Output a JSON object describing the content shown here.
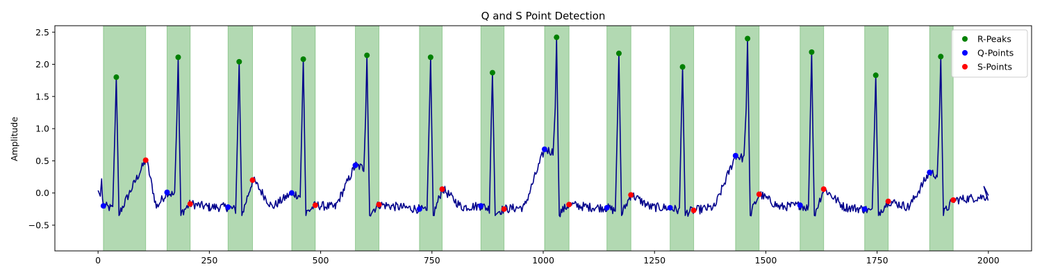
{
  "chart_data": {
    "type": "line",
    "title": "Q and S Point Detection",
    "xlabel": "",
    "ylabel": "Amplitude",
    "xlim": [
      -97,
      2097
    ],
    "ylim": [
      -0.9,
      2.6
    ],
    "xticks": [
      0,
      250,
      500,
      750,
      1000,
      1250,
      1500,
      1750,
      2000
    ],
    "yticks": [
      -0.5,
      0.0,
      0.5,
      1.0,
      1.5,
      2.0,
      2.5
    ],
    "xtick_labels": [
      "0",
      "250",
      "500",
      "750",
      "1000",
      "1250",
      "1500",
      "1750",
      "2000"
    ],
    "ytick_labels": [
      "−0.5",
      "0.0",
      "0.5",
      "1.0",
      "1.5",
      "2.0",
      "2.5"
    ],
    "grid": false,
    "legend_position": "top-right",
    "colors": {
      "signal": "#00008b",
      "r_peaks": "#008000",
      "q_points": "#0000ff",
      "s_points": "#ff0000",
      "region": "#008000"
    },
    "regions": [
      [
        12,
        107
      ],
      [
        155,
        207
      ],
      [
        292,
        347
      ],
      [
        435,
        488
      ],
      [
        578,
        631
      ],
      [
        722,
        773
      ],
      [
        860,
        912
      ],
      [
        1003,
        1058
      ],
      [
        1143,
        1197
      ],
      [
        1285,
        1338
      ],
      [
        1432,
        1485
      ],
      [
        1577,
        1630
      ],
      [
        1722,
        1775
      ],
      [
        1868,
        1921
      ]
    ],
    "series": [
      {
        "name": "R-Peaks",
        "marker": "circle",
        "points": [
          [
            41,
            1.8
          ],
          [
            180,
            2.11
          ],
          [
            317,
            2.04
          ],
          [
            461,
            2.08
          ],
          [
            604,
            2.14
          ],
          [
            747,
            2.11
          ],
          [
            886,
            1.87
          ],
          [
            1030,
            2.42
          ],
          [
            1170,
            2.17
          ],
          [
            1313,
            1.96
          ],
          [
            1459,
            2.4
          ],
          [
            1603,
            2.19
          ],
          [
            1747,
            1.83
          ],
          [
            1893,
            2.12
          ]
        ]
      },
      {
        "name": "Q-Points",
        "marker": "circle",
        "points": [
          [
            12,
            -0.2
          ],
          [
            155,
            0.01
          ],
          [
            292,
            -0.22
          ],
          [
            435,
            0.0
          ],
          [
            578,
            0.43
          ],
          [
            722,
            -0.25
          ],
          [
            860,
            -0.2
          ],
          [
            1003,
            0.68
          ],
          [
            1143,
            -0.23
          ],
          [
            1285,
            -0.23
          ],
          [
            1432,
            0.58
          ],
          [
            1577,
            -0.19
          ],
          [
            1722,
            -0.25
          ],
          [
            1868,
            0.32
          ]
        ]
      },
      {
        "name": "S-Points",
        "marker": "circle",
        "points": [
          [
            107,
            0.51
          ],
          [
            207,
            -0.17
          ],
          [
            347,
            0.2
          ],
          [
            488,
            -0.19
          ],
          [
            631,
            -0.18
          ],
          [
            773,
            0.06
          ],
          [
            912,
            -0.25
          ],
          [
            1058,
            -0.18
          ],
          [
            1197,
            -0.03
          ],
          [
            1338,
            -0.27
          ],
          [
            1485,
            -0.02
          ],
          [
            1630,
            0.06
          ],
          [
            1775,
            -0.13
          ],
          [
            1921,
            -0.11
          ]
        ]
      }
    ]
  }
}
